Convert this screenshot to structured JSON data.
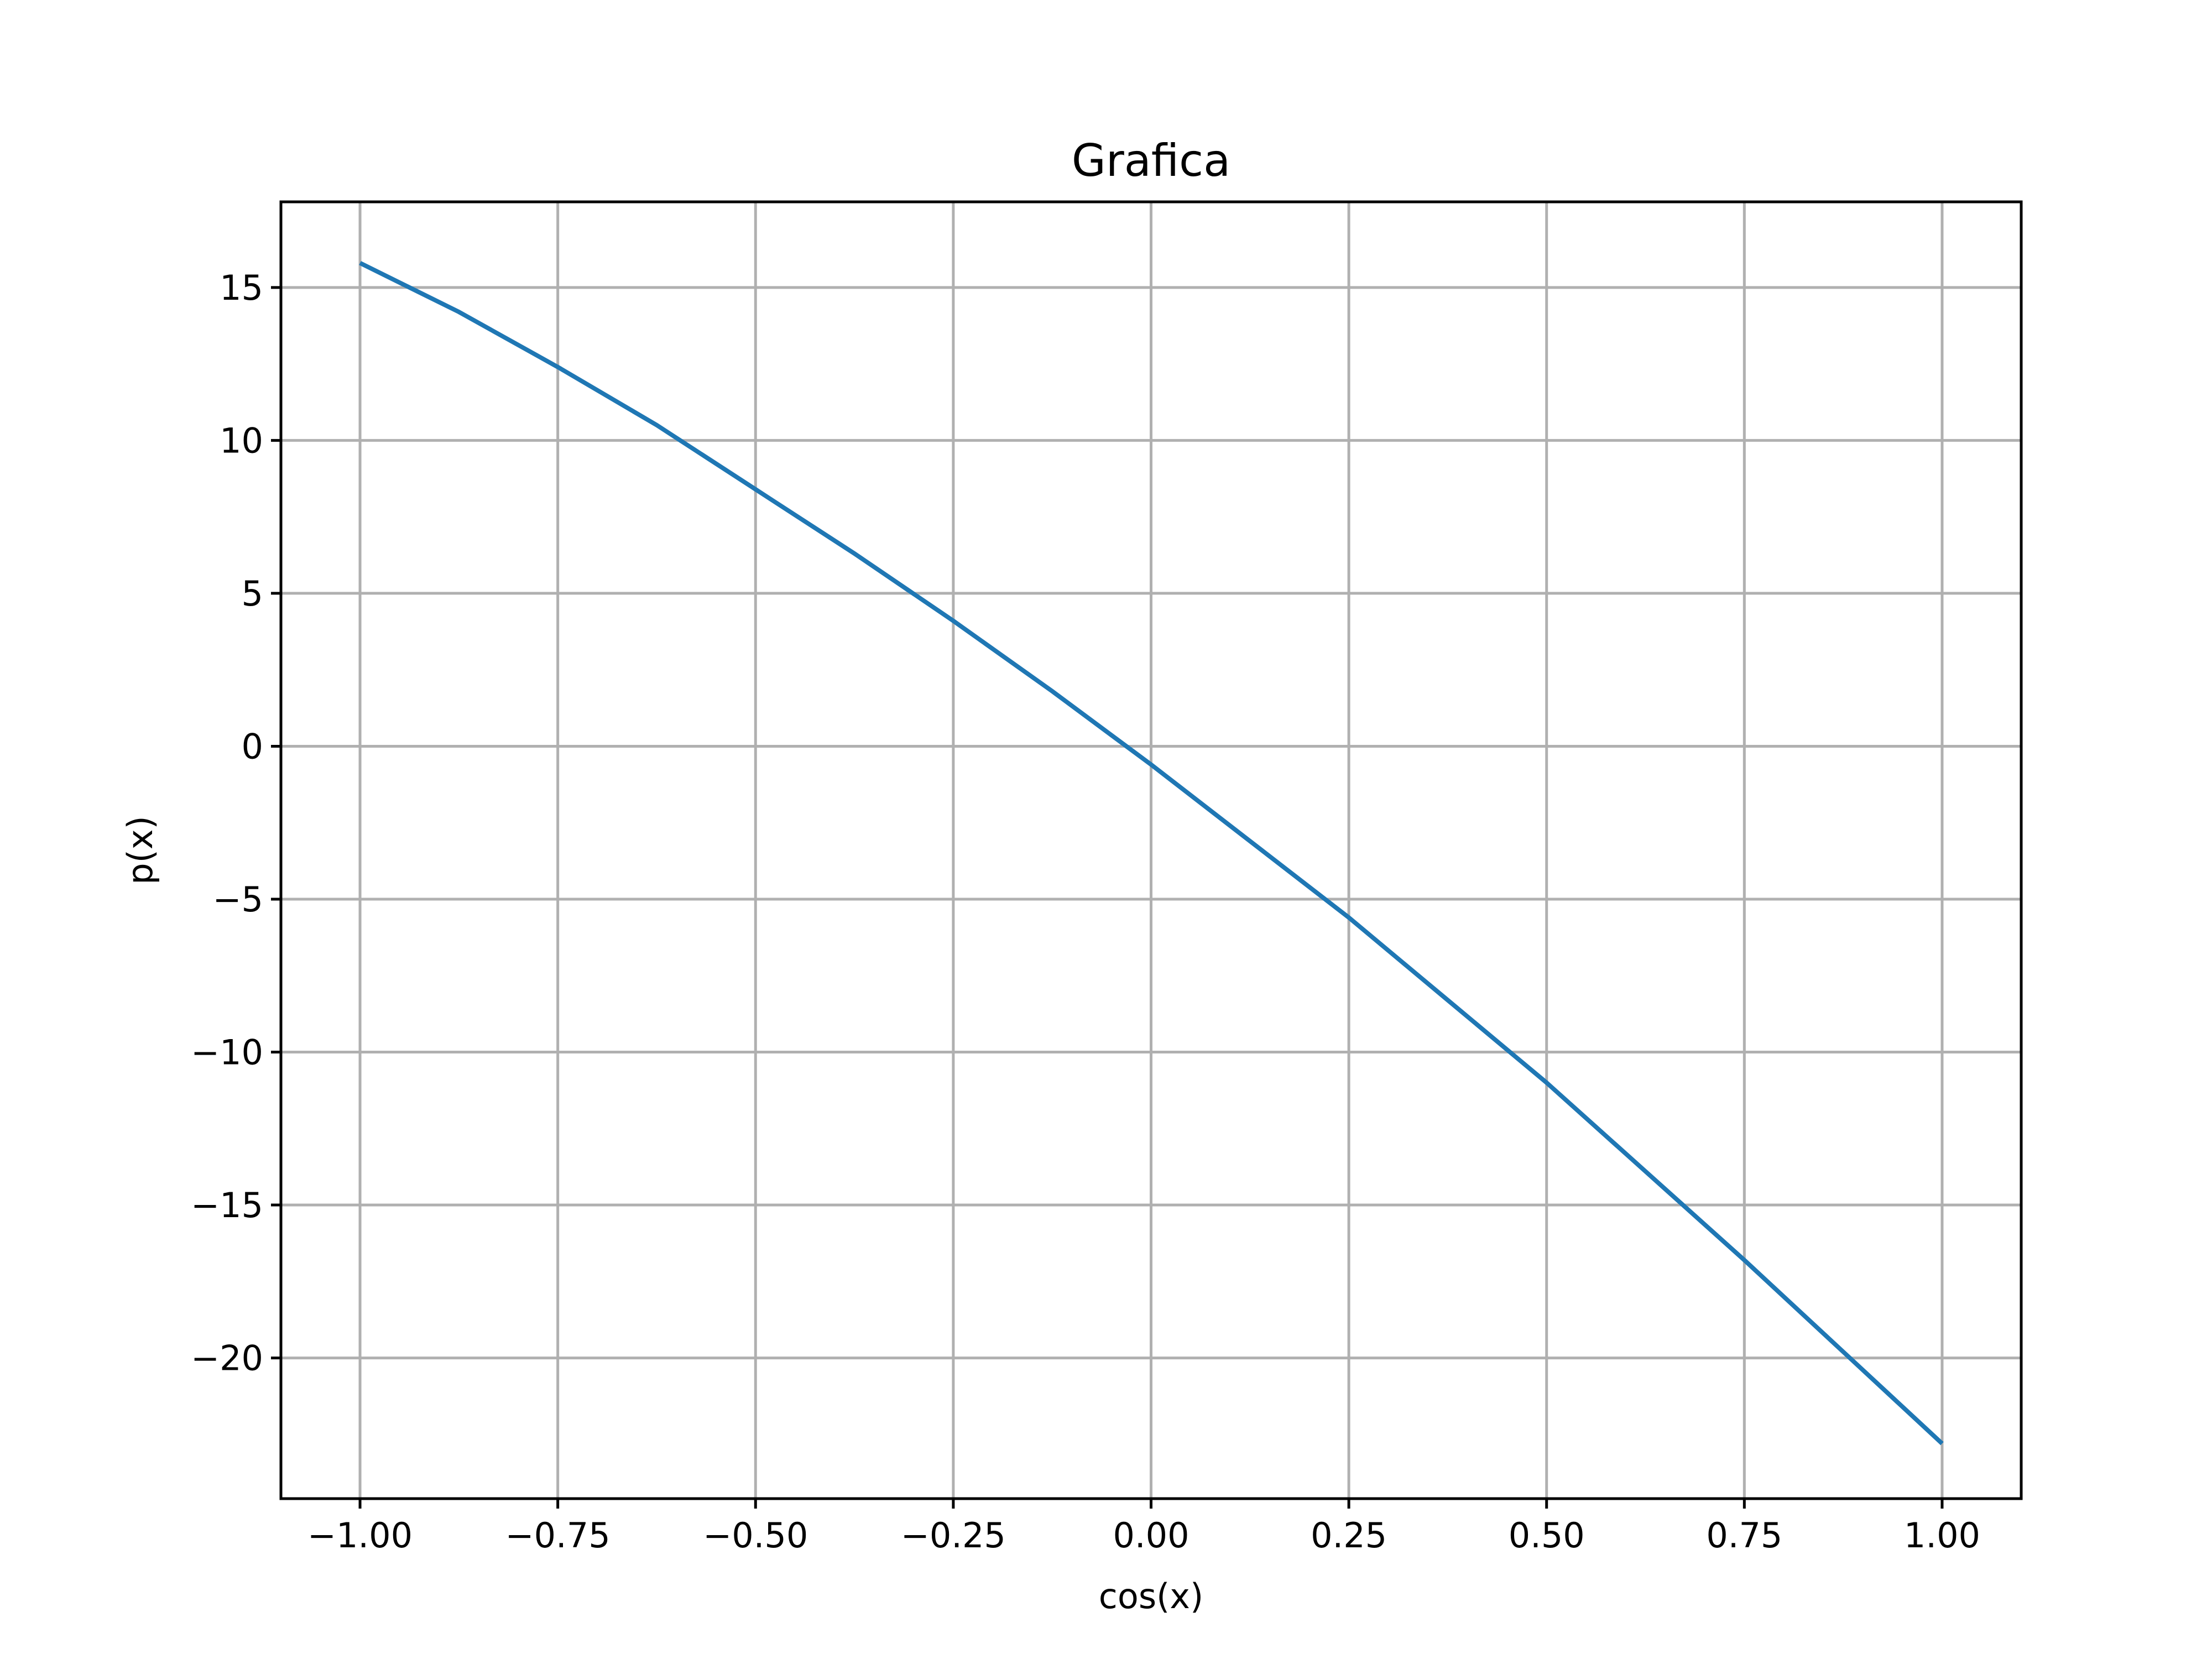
{
  "chart_data": {
    "type": "line",
    "title": "Grafica",
    "xlabel": "cos(x)",
    "ylabel": "p(x)",
    "xlim": [
      -1.1,
      1.1
    ],
    "ylim": [
      -24.6,
      17.8
    ],
    "x_ticks": [
      -1.0,
      -0.75,
      -0.5,
      -0.25,
      0.0,
      0.25,
      0.5,
      0.75,
      1.0
    ],
    "x_tick_labels": [
      "−1.00",
      "−0.75",
      "−0.50",
      "−0.25",
      "0.00",
      "0.25",
      "0.50",
      "0.75",
      "1.00"
    ],
    "y_ticks": [
      15,
      10,
      5,
      0,
      -5,
      -10,
      -15,
      -20
    ],
    "y_tick_labels": [
      "15",
      "10",
      "5",
      "0",
      "−5",
      "−10",
      "−15",
      "−20"
    ],
    "grid": true,
    "series": [
      {
        "color": "#1f77b4",
        "x": [
          -1.0,
          -0.875,
          -0.75,
          -0.625,
          -0.5,
          -0.375,
          -0.25,
          -0.125,
          0.0,
          0.125,
          0.25,
          0.375,
          0.5,
          0.625,
          0.75,
          0.875,
          1.0
        ],
        "y": [
          15.8,
          14.2,
          12.4,
          10.5,
          8.4,
          6.3,
          4.1,
          1.8,
          -0.6,
          -3.1,
          -5.6,
          -8.3,
          -11.0,
          -13.9,
          -16.8,
          -19.8,
          -22.8
        ]
      }
    ]
  }
}
